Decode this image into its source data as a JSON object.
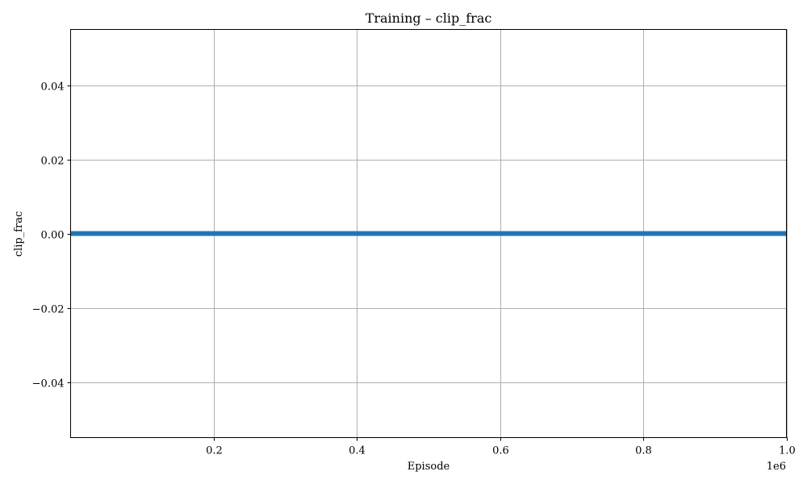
{
  "chart_data": {
    "type": "line",
    "title": "Training – clip_frac",
    "xlabel": "Episode",
    "ylabel": "clip_frac",
    "x_offset_label": "1e6",
    "xlim": [
      0.0,
      1.0
    ],
    "ylim": [
      -0.055,
      0.055
    ],
    "x_ticks": [
      0.2,
      0.4,
      0.6,
      0.8,
      1.0
    ],
    "x_tick_labels": [
      "0.2",
      "0.4",
      "0.6",
      "0.8",
      "1.0"
    ],
    "y_ticks": [
      -0.04,
      -0.02,
      0.0,
      0.02,
      0.04
    ],
    "y_tick_labels": [
      "−0.04",
      "−0.02",
      "0.00",
      "0.02",
      "0.04"
    ],
    "grid": true,
    "series": [
      {
        "color": "#1f77b4",
        "x": [
          0.0,
          0.1,
          0.2,
          0.3,
          0.4,
          0.5,
          0.6,
          0.7,
          0.8,
          0.9,
          1.0
        ],
        "y": [
          0,
          0,
          0,
          0,
          0,
          0,
          0,
          0,
          0,
          0,
          0
        ]
      }
    ]
  }
}
